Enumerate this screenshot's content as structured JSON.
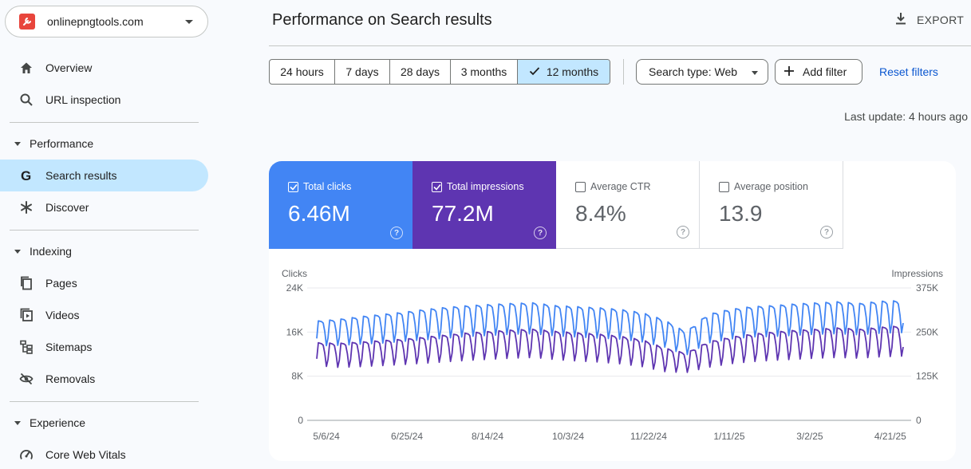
{
  "sidebar": {
    "property": "onlinepngtools.com",
    "items": {
      "overview": "Overview",
      "url_inspection": "URL inspection",
      "search_results": "Search results",
      "discover": "Discover",
      "pages": "Pages",
      "videos": "Videos",
      "sitemaps": "Sitemaps",
      "removals": "Removals",
      "core_web_vitals": "Core Web Vitals"
    },
    "sections": {
      "performance": "Performance",
      "indexing": "Indexing",
      "experience": "Experience"
    }
  },
  "header": {
    "title": "Performance on Search results",
    "export": "EXPORT"
  },
  "filters": {
    "ranges": [
      "24 hours",
      "7 days",
      "28 days",
      "3 months",
      "12 months"
    ],
    "selected_range": "12 months",
    "search_type": "Search type: Web",
    "add_filter": "Add filter",
    "reset": "Reset filters",
    "last_update": "Last update: 4 hours ago"
  },
  "metrics": {
    "clicks": {
      "label": "Total clicks",
      "value": "6.46M",
      "checked": true,
      "color": "#4285f4"
    },
    "impressions": {
      "label": "Total impressions",
      "value": "77.2M",
      "checked": true,
      "color": "#5e35b1"
    },
    "ctr": {
      "label": "Average CTR",
      "value": "8.4%",
      "checked": false
    },
    "position": {
      "label": "Average position",
      "value": "13.9",
      "checked": false
    }
  },
  "chart_data": {
    "type": "line",
    "left_axis_label": "Clicks",
    "right_axis_label": "Impressions",
    "left_ticks": [
      "0",
      "8K",
      "16K",
      "24K"
    ],
    "left_range": [
      0,
      24000
    ],
    "right_ticks": [
      "0",
      "125K",
      "250K",
      "375K"
    ],
    "right_range": [
      0,
      375000
    ],
    "x_ticks": [
      "5/6/24",
      "6/25/24",
      "8/14/24",
      "10/3/24",
      "11/22/24",
      "1/11/25",
      "3/2/25",
      "4/21/25"
    ],
    "x_start": "2024-04-30",
    "x_end": "2025-04-29",
    "grid": true,
    "series": [
      {
        "name": "Clicks",
        "color": "#4285f4",
        "pattern": "weekly",
        "weekday_peak": [
          18000,
          18300,
          18800,
          19200,
          19600,
          20100,
          20500,
          20800,
          21000,
          21200,
          21300,
          20800,
          20600,
          20400,
          20100,
          19500,
          18200,
          16000,
          19200,
          20100,
          20600,
          20800,
          21100,
          21300,
          21500,
          21200,
          21600,
          21700
        ],
        "weekend_low": [
          13500,
          13600,
          13800,
          14000,
          14300,
          14600,
          14900,
          15200,
          15400,
          15600,
          15700,
          15300,
          15100,
          14900,
          14700,
          14200,
          13300,
          11800,
          14000,
          14700,
          15100,
          15200,
          15400,
          15600,
          15700,
          15500,
          15800,
          15900
        ]
      },
      {
        "name": "Impressions",
        "color": "#5e35b1",
        "pattern": "weekly",
        "weekday_peak": [
          220000,
          218000,
          222000,
          226000,
          230000,
          236000,
          242000,
          248000,
          252000,
          256000,
          258000,
          252000,
          248000,
          244000,
          238000,
          228000,
          205000,
          190000,
          222000,
          235000,
          244000,
          250000,
          255000,
          258000,
          262000,
          258000,
          264000,
          268000
        ],
        "weekend_low": [
          155000,
          150000,
          152000,
          155000,
          158000,
          162000,
          166000,
          170000,
          173000,
          176000,
          178000,
          172000,
          168000,
          165000,
          160000,
          152000,
          138000,
          135000,
          150000,
          160000,
          166000,
          170000,
          173000,
          176000,
          178000,
          176000,
          180000,
          182000
        ]
      }
    ]
  }
}
